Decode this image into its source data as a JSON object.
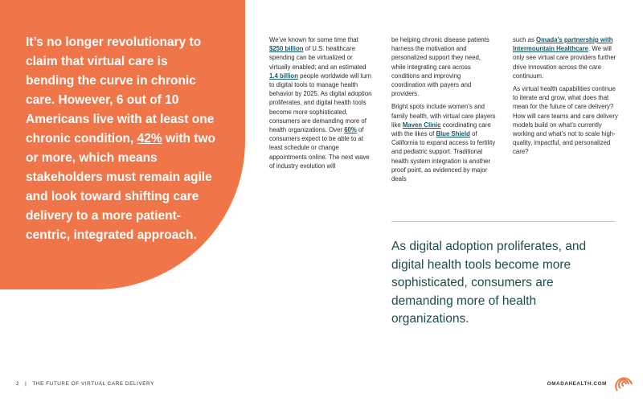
{
  "quote": [
    {
      "text": "It’s no longer revolutionary to claim that virtual care is bending the curve in chronic care. However, 6 out of 10 Americans live with at least one chronic condition, "
    },
    {
      "link": "42%"
    },
    {
      "text": " with two or more, which means stakeholders must remain agile and look toward shifting care delivery to a more patient-centric, integrated approach."
    }
  ],
  "columns": [
    [
      [
        {
          "text": "We’ve known for some time that "
        },
        {
          "link": "$250 billion"
        },
        {
          "text": " of U.S. healthcare spending can be virtualized or virtually enabled; and an estimated "
        },
        {
          "link": "1.4 billion"
        },
        {
          "text": " people worldwide will turn to digital tools to manage health behavior by 2025. As digital adoption proliferates, and digital health tools become more sophisticated, consumers are demanding more of health organizations. Over "
        },
        {
          "link": "60%"
        },
        {
          "text": " of consumers expect to be able to at least schedule or change appointments online. The next wave of industry evolution will"
        }
      ]
    ],
    [
      [
        {
          "text": "be helping chronic disease patients harness the motivation and personalized support they need, while integrating care across conditions and improving coordination with payers and providers."
        }
      ],
      [
        {
          "text": "Bright spots include women’s and family health, with virtual care players like "
        },
        {
          "link": "Maven Clinic"
        },
        {
          "text": " coordinating care with the likes of "
        },
        {
          "link": "Blue Shield"
        },
        {
          "text": " of California to expand access to fertility and pediatric support. Traditional health system integration is another proof point, as evidenced by major deals"
        }
      ]
    ],
    [
      [
        {
          "text": "such as "
        },
        {
          "link": "Omada’s partnership with Intermountain Healthcare"
        },
        {
          "text": ". We will only see virtual care providers further drive innovation across the care continuum."
        }
      ],
      [
        {
          "text": "As virtual health capabilities continue to iterate and grow, what does that mean for the future of care delivery? How will care teams and care delivery models build on what’s currently working and what’s not to scale high-quality, impactful, and personalized care?"
        }
      ]
    ]
  ],
  "pull_quote": "As digital adoption proliferates, and digital health tools become more sophisticated, consumers are demanding more of health organizations.",
  "footer": {
    "page": "2",
    "separator": "|",
    "title": "THE FUTURE OF VIRTUAL CARE DELIVERY",
    "site": "OMADAHEALTH.COM"
  }
}
